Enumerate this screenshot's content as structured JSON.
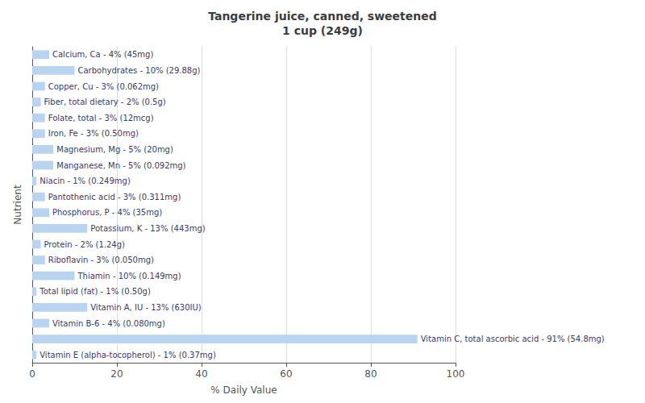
{
  "chart_data": {
    "type": "bar",
    "orientation": "horizontal",
    "title": "Tangerine juice, canned, sweetened\n1 cup (249g)",
    "xlabel": "% Daily Value",
    "ylabel": "Nutrient",
    "categories": [
      "Calcium, Ca - 4% (45mg)",
      "Carbohydrates - 10% (29.88g)",
      "Copper, Cu - 3% (0.062mg)",
      "Fiber, total dietary - 2% (0.5g)",
      "Folate, total - 3% (12mcg)",
      "Iron, Fe - 3% (0.50mg)",
      "Magnesium, Mg - 5% (20mg)",
      "Manganese, Mn - 5% (0.092mg)",
      "Niacin - 1% (0.249mg)",
      "Pantothenic acid - 3% (0.311mg)",
      "Phosphorus, P - 4% (35mg)",
      "Potassium, K - 13% (443mg)",
      "Protein - 2% (1.24g)",
      "Riboflavin - 3% (0.050mg)",
      "Thiamin - 10% (0.149mg)",
      "Total lipid (fat) - 1% (0.50g)",
      "Vitamin A, IU - 13% (630IU)",
      "Vitamin B-6 - 4% (0.080mg)",
      "Vitamin C, total ascorbic acid - 91% (54.8mg)",
      "Vitamin E (alpha-tocopherol) - 1% (0.37mg)"
    ],
    "values": [
      4,
      10,
      3,
      2,
      3,
      3,
      5,
      5,
      1,
      3,
      4,
      13,
      2,
      3,
      10,
      1,
      13,
      4,
      91,
      1
    ],
    "color": "#b8d4f0",
    "xlim": [
      0,
      100
    ],
    "xticks": [
      0,
      20,
      40,
      60,
      80,
      100
    ],
    "grid": true,
    "tick_labels": "x"
  }
}
